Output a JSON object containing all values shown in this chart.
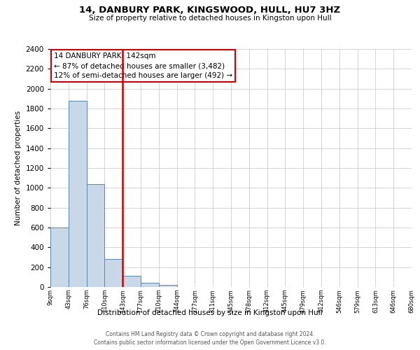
{
  "title": "14, DANBURY PARK, KINGSWOOD, HULL, HU7 3HZ",
  "subtitle": "Size of property relative to detached houses in Kingston upon Hull",
  "xlabel": "Distribution of detached houses by size in Kingston upon Hull",
  "ylabel": "Number of detached properties",
  "bin_labels": [
    "9sqm",
    "43sqm",
    "76sqm",
    "110sqm",
    "143sqm",
    "177sqm",
    "210sqm",
    "244sqm",
    "277sqm",
    "311sqm",
    "345sqm",
    "378sqm",
    "412sqm",
    "445sqm",
    "479sqm",
    "512sqm",
    "546sqm",
    "579sqm",
    "613sqm",
    "646sqm",
    "680sqm"
  ],
  "bar_heights": [
    600,
    1880,
    1040,
    280,
    110,
    45,
    20,
    0,
    0,
    0,
    0,
    0,
    0,
    0,
    0,
    0,
    0,
    0,
    0,
    0
  ],
  "bar_color": "#c8d8e8",
  "bar_edge_color": "#5588aa",
  "vertical_line_color": "#cc0000",
  "annotation_line1": "14 DANBURY PARK: 142sqm",
  "annotation_line2": "← 87% of detached houses are smaller (3,482)",
  "annotation_line3": "12% of semi-detached houses are larger (492) →",
  "annotation_box_color": "#ffffff",
  "annotation_box_edge_color": "#cc0000",
  "ylim": [
    0,
    2400
  ],
  "yticks": [
    0,
    200,
    400,
    600,
    800,
    1000,
    1200,
    1400,
    1600,
    1800,
    2000,
    2200,
    2400
  ],
  "footnote1": "Contains HM Land Registry data © Crown copyright and database right 2024.",
  "footnote2": "Contains public sector information licensed under the Open Government Licence v3.0.",
  "background_color": "#ffffff",
  "grid_color": "#cccccc"
}
